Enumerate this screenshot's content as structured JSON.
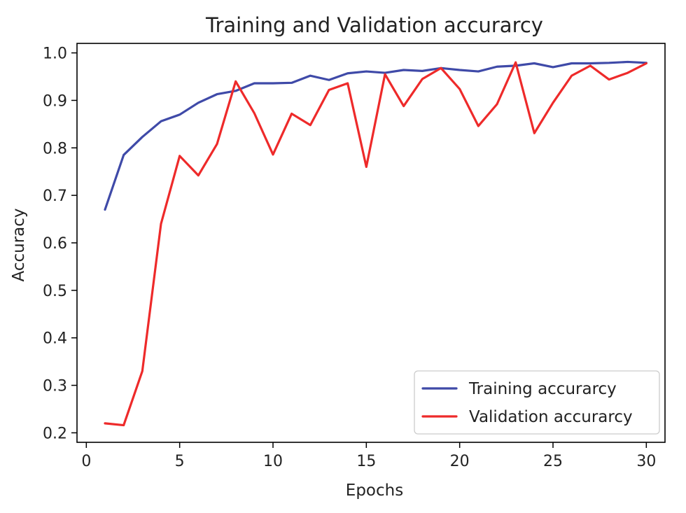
{
  "chart_data": {
    "type": "line",
    "title": "Training and Validation accurarcy",
    "xlabel": "Epochs",
    "ylabel": "Accuracy",
    "xlim": [
      -0.5,
      31.0
    ],
    "ylim": [
      0.18,
      1.02
    ],
    "xticks": [
      0,
      5,
      10,
      15,
      20,
      25,
      30
    ],
    "yticks": [
      0.2,
      0.3,
      0.4,
      0.5,
      0.6,
      0.7,
      0.8,
      0.9,
      1.0
    ],
    "ytick_labels": [
      "0.2",
      "0.3",
      "0.4",
      "0.5",
      "0.6",
      "0.7",
      "0.8",
      "0.9",
      "1.0"
    ],
    "grid": false,
    "legend_position": "bottom-right",
    "x": [
      1,
      2,
      3,
      4,
      5,
      6,
      7,
      8,
      9,
      10,
      11,
      12,
      13,
      14,
      15,
      16,
      17,
      18,
      19,
      20,
      21,
      22,
      23,
      24,
      25,
      26,
      27,
      28,
      29,
      30
    ],
    "series": [
      {
        "name": "Training accurarcy",
        "color": "#3f4aa8",
        "values": [
          0.67,
          0.785,
          0.823,
          0.856,
          0.87,
          0.895,
          0.913,
          0.92,
          0.936,
          0.936,
          0.937,
          0.952,
          0.943,
          0.957,
          0.961,
          0.958,
          0.964,
          0.962,
          0.968,
          0.964,
          0.961,
          0.971,
          0.973,
          0.978,
          0.97,
          0.978,
          0.978,
          0.979,
          0.981,
          0.979
        ]
      },
      {
        "name": "Validation accurarcy",
        "color": "#ee2a2a",
        "values": [
          0.22,
          0.216,
          0.33,
          0.64,
          0.783,
          0.742,
          0.808,
          0.94,
          0.873,
          0.786,
          0.872,
          0.848,
          0.922,
          0.936,
          0.76,
          0.955,
          0.888,
          0.945,
          0.968,
          0.924,
          0.846,
          0.892,
          0.98,
          0.831,
          0.895,
          0.952,
          0.973,
          0.944,
          0.958,
          0.978
        ]
      }
    ]
  }
}
